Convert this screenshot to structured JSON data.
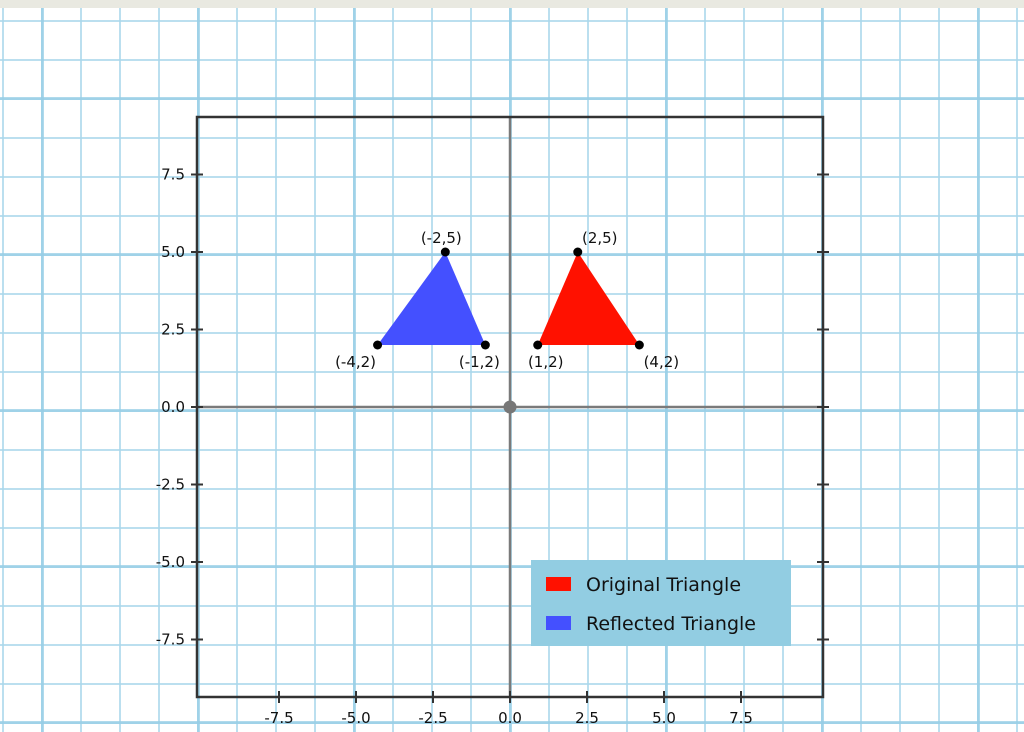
{
  "chart_data": {
    "type": "scatter",
    "title": "",
    "xlabel": "",
    "ylabel": "",
    "xlim": [
      -10.2,
      10.2
    ],
    "ylim": [
      -9.4,
      9.4
    ],
    "xticks": [
      "-7.5",
      "-5.0",
      "-2.5",
      "0.0",
      "2.5",
      "5.0",
      "7.5"
    ],
    "yticks": [
      "7.5",
      "5.0",
      "2.5",
      "0.0",
      "-2.5",
      "-5.0",
      "-7.5"
    ],
    "grid": true,
    "legend_position": "bottom-right",
    "series": [
      {
        "name": "Original Triangle",
        "color": "#ff1100",
        "points": [
          {
            "x": 0.9,
            "y": 2,
            "label": "(1,2)"
          },
          {
            "x": 2.2,
            "y": 5,
            "label": "(2,5)"
          },
          {
            "x": 4.2,
            "y": 2,
            "label": "(4,2)"
          }
        ]
      },
      {
        "name": "Reflected Triangle",
        "color": "#4450ff",
        "points": [
          {
            "x": -4.3,
            "y": 2,
            "label": "(-4,2)"
          },
          {
            "x": -2.1,
            "y": 5,
            "label": "(-2,5)"
          },
          {
            "x": -0.8,
            "y": 2,
            "label": "(-1,2)"
          }
        ]
      }
    ],
    "legend_bg": "#92cde2"
  }
}
